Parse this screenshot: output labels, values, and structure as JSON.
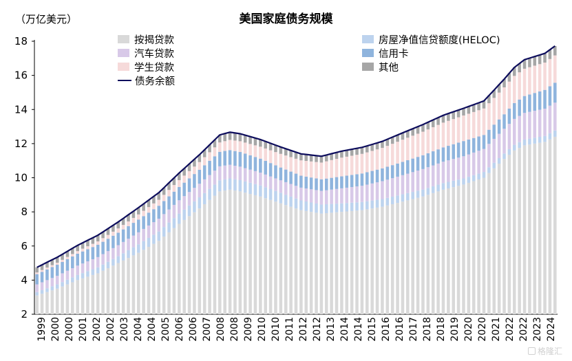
{
  "title": "美国家庭债务规模",
  "unit_label": "（万亿美元）",
  "watermark": "格隆汇",
  "colors": {
    "mortgage": "#d9d9d9",
    "heloc": "#bdd3ee",
    "auto": "#d8c9e8",
    "credit_card": "#8fb4dd",
    "student": "#f6dada",
    "other": "#a6a6a6",
    "total_line": "#0d0d5c"
  },
  "chart_data": {
    "type": "bar",
    "stacked": true,
    "title": "美国家庭债务规模",
    "ylabel": "（万亿美元）",
    "ylim": [
      2,
      18
    ],
    "yticks": [
      2,
      4,
      6,
      8,
      10,
      12,
      14,
      16,
      18
    ],
    "x_tick_labels": [
      "1999",
      "2000",
      "2000",
      "2001",
      "2002",
      "2002",
      "2003",
      "2004",
      "2004",
      "2005",
      "2006",
      "2006",
      "2007",
      "2008",
      "2008",
      "2009",
      "2010",
      "2010",
      "2011",
      "2012",
      "2012",
      "2013",
      "2014",
      "2014",
      "2015",
      "2016",
      "2016",
      "2017",
      "2018",
      "2018",
      "2019",
      "2020",
      "2020",
      "2021",
      "2022",
      "2022",
      "2023",
      "2024"
    ],
    "quarters_per_year": 4,
    "first_year": 1999,
    "quarter_count": 103,
    "anchors": {
      "years": [
        1999.0,
        2000.0,
        2001.0,
        2002.0,
        2003.0,
        2004.0,
        2005.0,
        2006.0,
        2007.0,
        2008.0,
        2008.5,
        2009.0,
        2010.0,
        2011.0,
        2012.0,
        2013.0,
        2014.0,
        2015.0,
        2016.0,
        2017.0,
        2018.0,
        2019.0,
        2020.0,
        2021.0,
        2022.0,
        2022.5,
        2023.0,
        2024.0,
        2024.5
      ],
      "mortgage": [
        3.1,
        3.5,
        4.0,
        4.4,
        5.0,
        5.6,
        6.3,
        7.3,
        8.2,
        9.2,
        9.3,
        9.2,
        8.9,
        8.5,
        8.1,
        7.9,
        8.0,
        8.1,
        8.3,
        8.6,
        8.9,
        9.3,
        9.6,
        10.0,
        11.1,
        11.6,
        11.9,
        12.1,
        12.4
      ],
      "heloc": [
        0.2,
        0.25,
        0.3,
        0.35,
        0.4,
        0.5,
        0.55,
        0.6,
        0.65,
        0.65,
        0.66,
        0.66,
        0.65,
        0.62,
        0.57,
        0.53,
        0.5,
        0.48,
        0.45,
        0.43,
        0.41,
        0.39,
        0.36,
        0.34,
        0.32,
        0.33,
        0.34,
        0.35,
        0.37
      ],
      "auto": [
        0.45,
        0.5,
        0.55,
        0.6,
        0.65,
        0.7,
        0.75,
        0.78,
        0.8,
        0.82,
        0.8,
        0.79,
        0.75,
        0.73,
        0.75,
        0.8,
        0.88,
        0.95,
        1.05,
        1.12,
        1.2,
        1.25,
        1.3,
        1.35,
        1.45,
        1.52,
        1.56,
        1.6,
        1.63
      ],
      "credit_card": [
        0.6,
        0.65,
        0.7,
        0.72,
        0.73,
        0.75,
        0.76,
        0.78,
        0.82,
        0.85,
        0.86,
        0.86,
        0.82,
        0.75,
        0.7,
        0.68,
        0.7,
        0.72,
        0.75,
        0.78,
        0.81,
        0.84,
        0.89,
        0.82,
        0.85,
        0.93,
        0.99,
        1.1,
        1.17
      ],
      "student": [
        0.1,
        0.12,
        0.15,
        0.2,
        0.25,
        0.3,
        0.35,
        0.4,
        0.45,
        0.55,
        0.6,
        0.63,
        0.7,
        0.8,
        0.9,
        0.98,
        1.1,
        1.15,
        1.2,
        1.3,
        1.38,
        1.45,
        1.5,
        1.55,
        1.58,
        1.59,
        1.6,
        1.6,
        1.6
      ],
      "other": [
        0.3,
        0.32,
        0.34,
        0.36,
        0.38,
        0.4,
        0.42,
        0.42,
        0.43,
        0.44,
        0.45,
        0.44,
        0.42,
        0.4,
        0.38,
        0.37,
        0.38,
        0.38,
        0.38,
        0.4,
        0.42,
        0.43,
        0.42,
        0.44,
        0.48,
        0.5,
        0.53,
        0.54,
        0.55
      ]
    },
    "series": [
      {
        "name": "按揭贷款",
        "key": "mortgage"
      },
      {
        "name": "房屋净值信贷额度(HELOC)",
        "key": "heloc"
      },
      {
        "name": "汽车贷款",
        "key": "auto"
      },
      {
        "name": "信用卡",
        "key": "credit_card"
      },
      {
        "name": "学生贷款",
        "key": "student"
      },
      {
        "name": "其他",
        "key": "other"
      },
      {
        "name": "债务余额",
        "key": "total",
        "type": "line"
      }
    ],
    "legend": {
      "left": [
        {
          "label": "按揭贷款",
          "key": "mortgage"
        },
        {
          "label": "汽车贷款",
          "key": "auto"
        },
        {
          "label": "学生贷款",
          "key": "student"
        },
        {
          "label": "债务余额",
          "key": "total_line"
        }
      ],
      "right": [
        {
          "label": "房屋净值信贷额度(HELOC)",
          "key": "heloc"
        },
        {
          "label": "信用卡",
          "key": "credit_card"
        },
        {
          "label": "其他",
          "key": "other"
        }
      ]
    },
    "legend_position": "top",
    "grid": false
  }
}
